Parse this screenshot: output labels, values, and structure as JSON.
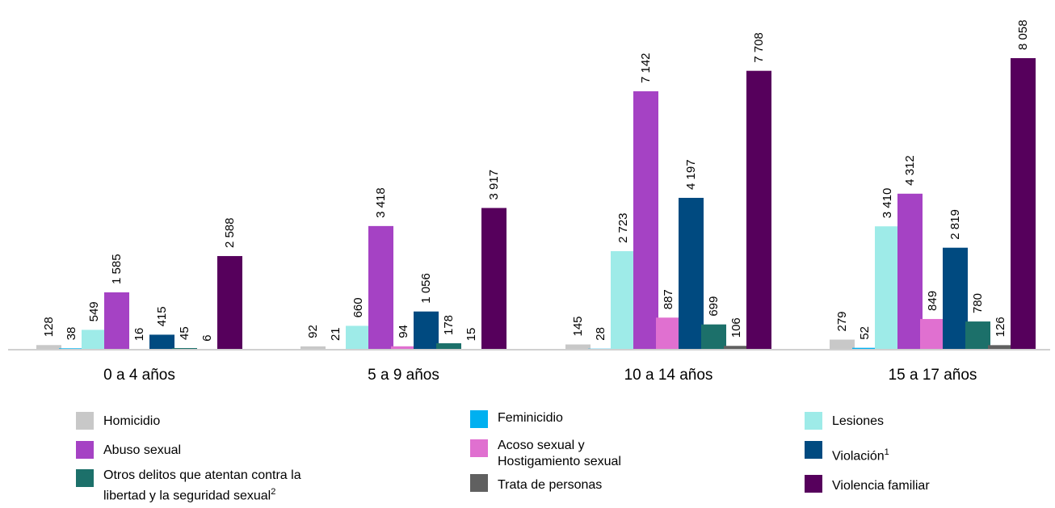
{
  "chart_data": {
    "type": "bar",
    "categories": [
      "0 a 4 años",
      "5 a 9 años",
      "10 a 14 años",
      "15 a 17 años"
    ],
    "series": [
      {
        "name": "Homicidio",
        "color": "#c8c8c8",
        "values": [
          128,
          92,
          145,
          279
        ],
        "labels": [
          "128",
          "92",
          "145",
          "279"
        ]
      },
      {
        "name": "Feminicidio",
        "color": "#00b0f0",
        "values": [
          38,
          21,
          28,
          52
        ],
        "labels": [
          "38",
          "21",
          "28",
          "52"
        ]
      },
      {
        "name": "Lesiones",
        "color": "#9eebe8",
        "values": [
          549,
          660,
          2723,
          3410
        ],
        "labels": [
          "549",
          "660",
          "2 723",
          "3 410"
        ]
      },
      {
        "name": "Abuso sexual",
        "color": "#a542c4",
        "values": [
          1585,
          3418,
          7142,
          4312
        ],
        "labels": [
          "1 585",
          "3 418",
          "7 142",
          "4 312"
        ]
      },
      {
        "name": "Acoso sexual y Hostigamiento sexual",
        "color": "#e070d0",
        "values": [
          16,
          94,
          887,
          849
        ],
        "labels": [
          "16",
          "94",
          "887",
          "849"
        ]
      },
      {
        "name": "Violación",
        "color": "#004a80",
        "values": [
          415,
          1056,
          4197,
          2819
        ],
        "labels": [
          "415",
          "1 056",
          "4 197",
          "2 819"
        ]
      },
      {
        "name": "Otros delitos que atentan contra la libertad y la seguridad sexual",
        "color": "#1c706a",
        "values": [
          45,
          178,
          699,
          780
        ],
        "labels": [
          "45",
          "178",
          "699",
          "780"
        ]
      },
      {
        "name": "Trata de personas",
        "color": "#606060",
        "values": [
          6,
          15,
          106,
          126
        ],
        "labels": [
          "6",
          "15",
          "106",
          "126"
        ]
      },
      {
        "name": "Violencia familiar",
        "color": "#56005c",
        "values": [
          2588,
          3917,
          7708,
          8058
        ],
        "labels": [
          "2 588",
          "3 917",
          "7 708",
          "8 058"
        ]
      }
    ],
    "ylim": [
      0,
      8600
    ],
    "grid": false,
    "legend_position": "bottom"
  },
  "legend": [
    {
      "label": "Homicidio",
      "sup": "",
      "color": "#c8c8c8"
    },
    {
      "label": "Feminicidio",
      "sup": "",
      "color": "#00b0f0"
    },
    {
      "label": "Lesiones",
      "sup": "",
      "color": "#9eebe8"
    },
    {
      "label": "Abuso sexual",
      "sup": "",
      "color": "#a542c4"
    },
    {
      "label": "Acoso sexual y\nHostigamiento sexual",
      "sup": "",
      "color": "#e070d0"
    },
    {
      "label": "Violación",
      "sup": "1",
      "color": "#004a80"
    },
    {
      "label": "Otros delitos que atentan contra la\nlibertad y la seguridad sexual",
      "sup": "2",
      "color": "#1c706a"
    },
    {
      "label": "Trata de personas",
      "sup": "",
      "color": "#606060"
    },
    {
      "label": "Violencia familiar",
      "sup": "",
      "color": "#56005c"
    }
  ]
}
